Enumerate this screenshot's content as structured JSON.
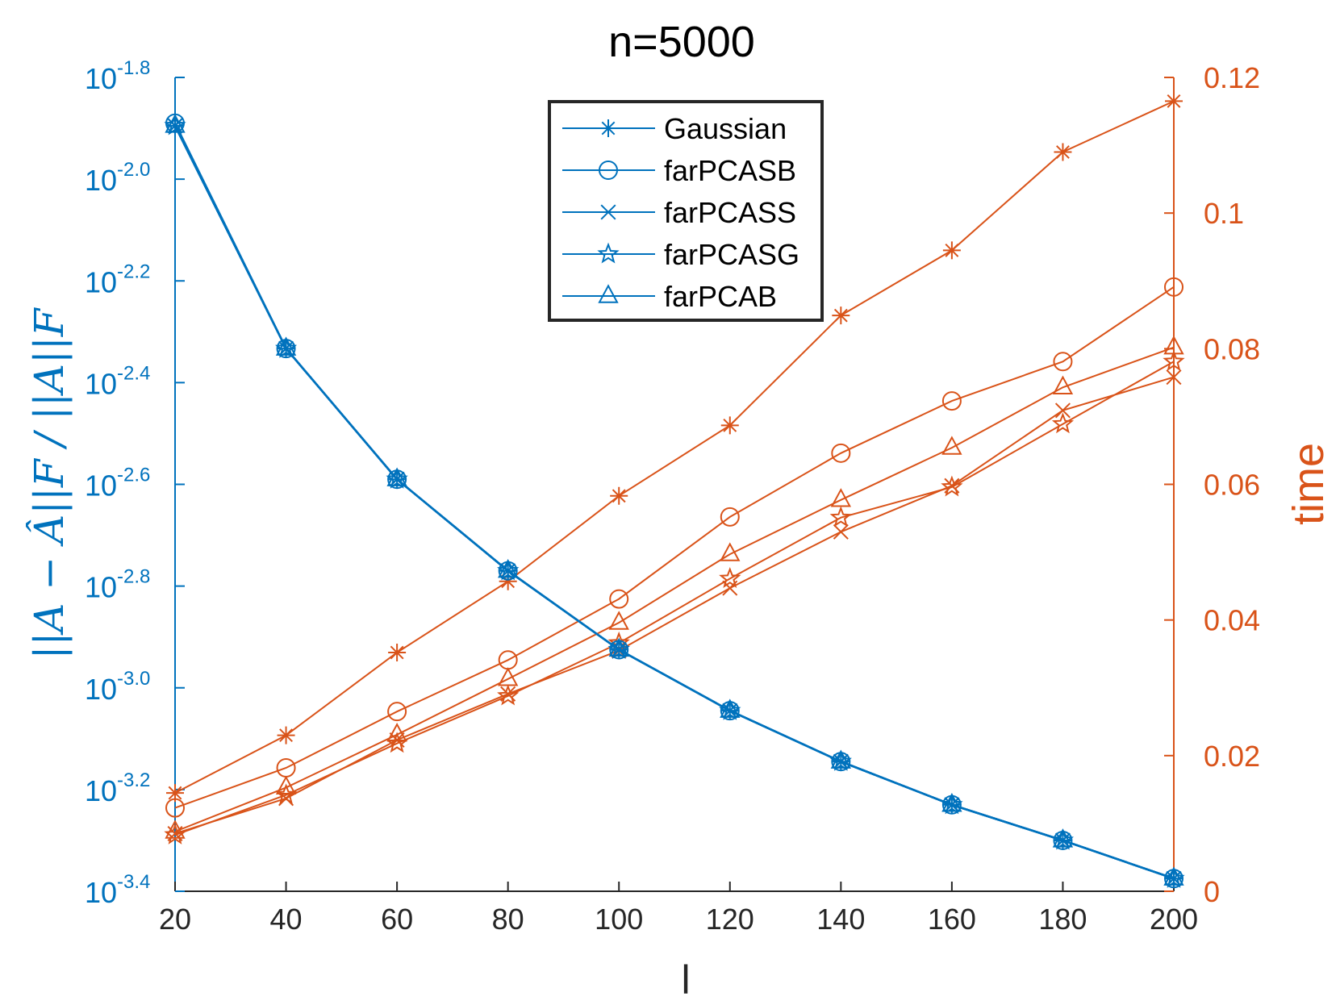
{
  "chart_data": {
    "type": "line",
    "title": "n=5000",
    "xlabel": "l",
    "ylabel_left": "||A − Â||F / ||A||F",
    "ylabel_right": "time",
    "x": [
      20,
      40,
      60,
      80,
      100,
      120,
      140,
      160,
      180,
      200
    ],
    "xlim": [
      20,
      200
    ],
    "x_ticks": [
      "20",
      "40",
      "60",
      "80",
      "100",
      "120",
      "140",
      "160",
      "180",
      "200"
    ],
    "left_axis": {
      "scale": "log10",
      "ylim_exponent": [
        -3.4,
        -1.8
      ],
      "tick_base": "10",
      "tick_exponents": [
        "-1.8",
        "-2.0",
        "-2.2",
        "-2.4",
        "-2.6",
        "-2.8",
        "-3.0",
        "-3.2",
        "-3.4"
      ],
      "color": "#0072BD"
    },
    "right_axis": {
      "scale": "linear",
      "ylim": [
        0,
        0.12
      ],
      "ticks": [
        "0",
        "0.02",
        "0.04",
        "0.06",
        "0.08",
        "0.1",
        "0.12"
      ],
      "color": "#D95319"
    },
    "error_series": [
      {
        "name": "Gaussian",
        "marker": "asterisk",
        "log10_values": [
          -1.895,
          -2.333,
          -2.59,
          -2.77,
          -2.925,
          -3.045,
          -3.145,
          -3.23,
          -3.3,
          -3.375
        ]
      },
      {
        "name": "farPCASB",
        "marker": "circle",
        "log10_values": [
          -1.89,
          -2.333,
          -2.59,
          -2.77,
          -2.925,
          -3.045,
          -3.145,
          -3.23,
          -3.3,
          -3.375
        ]
      },
      {
        "name": "farPCASS",
        "marker": "x",
        "log10_values": [
          -1.895,
          -2.333,
          -2.59,
          -2.77,
          -2.925,
          -3.045,
          -3.145,
          -3.23,
          -3.3,
          -3.375
        ]
      },
      {
        "name": "farPCASG",
        "marker": "star",
        "log10_values": [
          -1.895,
          -2.333,
          -2.59,
          -2.77,
          -2.925,
          -3.045,
          -3.145,
          -3.23,
          -3.3,
          -3.375
        ]
      },
      {
        "name": "farPCAB",
        "marker": "triangle",
        "log10_values": [
          -1.895,
          -2.333,
          -2.59,
          -2.77,
          -2.925,
          -3.045,
          -3.145,
          -3.23,
          -3.3,
          -3.375
        ]
      }
    ],
    "time_series": [
      {
        "name": "Gaussian",
        "marker": "asterisk",
        "values": [
          0.0145,
          0.023,
          0.0352,
          0.0457,
          0.0583,
          0.0687,
          0.0849,
          0.0945,
          0.109,
          0.1165
        ]
      },
      {
        "name": "farPCASB",
        "marker": "circle",
        "values": [
          0.0123,
          0.0182,
          0.0265,
          0.0341,
          0.0431,
          0.0552,
          0.0646,
          0.0723,
          0.0781,
          0.0891
        ]
      },
      {
        "name": "farPCASS",
        "marker": "x",
        "values": [
          0.0085,
          0.0137,
          0.0223,
          0.0291,
          0.0355,
          0.0447,
          0.053,
          0.0598,
          0.0709,
          0.0758
        ]
      },
      {
        "name": "farPCASG",
        "marker": "star",
        "values": [
          0.0083,
          0.0142,
          0.0218,
          0.0288,
          0.0366,
          0.0461,
          0.0551,
          0.0596,
          0.0689,
          0.0781
        ]
      },
      {
        "name": "farPCAB",
        "marker": "triangle",
        "values": [
          0.0088,
          0.0153,
          0.0231,
          0.0313,
          0.0396,
          0.0497,
          0.0577,
          0.0654,
          0.0743,
          0.0802
        ]
      }
    ],
    "legend_position": "top-center",
    "grid": false
  }
}
